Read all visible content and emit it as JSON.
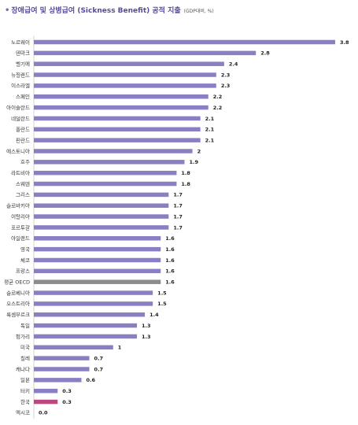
{
  "header": {
    "bullet": "•",
    "title": "장애급여 및 상병급여 (Sickness Benefit) 공적 지출",
    "subtitle": "(GDP대비, %)"
  },
  "colors": {
    "bar": "#8b7fc3",
    "average": "#8c8c8c",
    "highlight": "#b84a7e",
    "highlight_label": "#c2185b",
    "average_label": "#999999"
  },
  "chart_data": {
    "type": "bar",
    "orientation": "horizontal",
    "title": "장애급여 및 상병급여 (Sickness Benefit) 공적 지출",
    "subtitle": "(GDP대비, %)",
    "xlim": [
      0,
      3.8
    ],
    "grid": false,
    "categories": [
      "노르웨이",
      "덴마크",
      "벨기에",
      "뉴질랜드",
      "이스라엘",
      "스페인",
      "아이슬란드",
      "네덜란드",
      "폴란드",
      "핀란드",
      "에스토니아",
      "호주",
      "라트비아",
      "스웨덴",
      "그리스",
      "슬로바키아",
      "이탈리아",
      "포르투갈",
      "아일랜드",
      "영국",
      "체코",
      "프랑스",
      "평균 OECD",
      "슬로베니아",
      "오스트리아",
      "룩셈부르크",
      "독일",
      "헝가리",
      "미국",
      "칠레",
      "캐나다",
      "일본",
      "터키",
      "한국",
      "멕시코"
    ],
    "values": [
      3.8,
      2.8,
      2.4,
      2.3,
      2.3,
      2.2,
      2.2,
      2.1,
      2.1,
      2.1,
      2,
      1.9,
      1.8,
      1.8,
      1.7,
      1.7,
      1.7,
      1.7,
      1.6,
      1.6,
      1.6,
      1.6,
      1.6,
      1.5,
      1.5,
      1.4,
      1.3,
      1.3,
      1,
      0.7,
      0.7,
      0.6,
      0.3,
      0.3,
      0.0
    ],
    "value_labels": [
      "3.8",
      "2.8",
      "2.4",
      "2.3",
      "2.3",
      "2.2",
      "2.2",
      "2.1",
      "2.1",
      "2.1",
      "2",
      "1.9",
      "1.8",
      "1.8",
      "1.7",
      "1.7",
      "1.7",
      "1.7",
      "1.6",
      "1.6",
      "1.6",
      "1.6",
      "1.6",
      "1.5",
      "1.5",
      "1.4",
      "1.3",
      "1.3",
      "1",
      "0.7",
      "0.7",
      "0.6",
      "0.3",
      "0.3",
      "0.0"
    ],
    "average_category": "평균 OECD",
    "highlight_category": "한국"
  }
}
